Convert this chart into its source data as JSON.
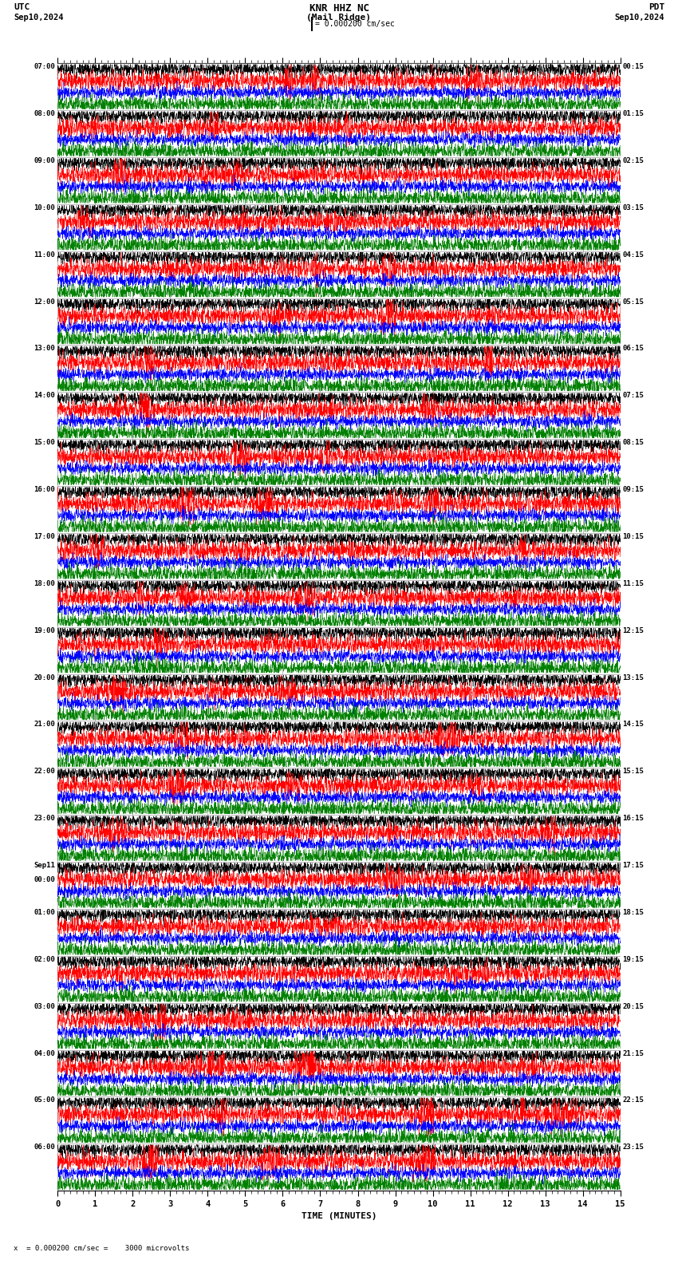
{
  "title_line1": "KNR HHZ NC",
  "title_line2": "(Mail Ridge)",
  "scale_text": "= 0.000200 cm/sec",
  "utc_label": "UTC",
  "pdt_label": "PDT",
  "date_left": "Sep10,2024",
  "date_right": "Sep10,2024",
  "bottom_note": "x  = 0.000200 cm/sec =    3000 microvolts",
  "xlabel": "TIME (MINUTES)",
  "left_times": [
    "07:00",
    "08:00",
    "09:00",
    "10:00",
    "11:00",
    "12:00",
    "13:00",
    "14:00",
    "15:00",
    "16:00",
    "17:00",
    "18:00",
    "19:00",
    "20:00",
    "21:00",
    "22:00",
    "23:00",
    "Sep11",
    "01:00",
    "02:00",
    "03:00",
    "04:00",
    "05:00",
    "06:00"
  ],
  "left_times_sub": [
    "",
    "",
    "",
    "",
    "",
    "",
    "",
    "",
    "",
    "",
    "",
    "",
    "",
    "",
    "",
    "",
    "",
    "00:00",
    "",
    "",
    "",
    "",
    "",
    ""
  ],
  "right_times": [
    "00:15",
    "01:15",
    "02:15",
    "03:15",
    "04:15",
    "05:15",
    "06:15",
    "07:15",
    "08:15",
    "09:15",
    "10:15",
    "11:15",
    "12:15",
    "13:15",
    "14:15",
    "15:15",
    "16:15",
    "17:15",
    "18:15",
    "19:15",
    "20:15",
    "21:15",
    "22:15",
    "23:15"
  ],
  "n_rows": 24,
  "traces_per_row": 4,
  "trace_colors": [
    "black",
    "red",
    "blue",
    "green"
  ],
  "xmin": 0,
  "xmax": 15,
  "bg_color": "white",
  "grid_color": "#888888",
  "fig_width": 8.5,
  "fig_height": 15.84,
  "dpi": 100,
  "seed": 42
}
